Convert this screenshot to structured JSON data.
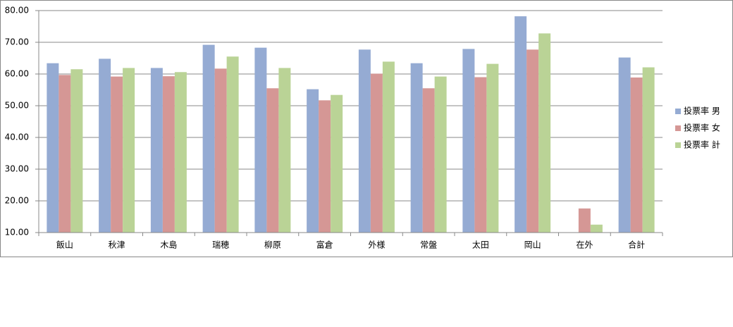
{
  "chart_data": {
    "type": "bar",
    "categories": [
      "飯山",
      "秋津",
      "木島",
      "瑞穂",
      "柳原",
      "富倉",
      "外様",
      "常盤",
      "太田",
      "岡山",
      "在外",
      "合計"
    ],
    "series": [
      {
        "name": "投票率 男",
        "color": "#95abd3",
        "values": [
          63.4,
          64.8,
          61.9,
          69.2,
          68.3,
          55.2,
          67.7,
          63.4,
          67.9,
          78.2,
          null,
          65.2
        ]
      },
      {
        "name": "投票率 女",
        "color": "#d59795",
        "values": [
          59.7,
          59.2,
          59.3,
          61.7,
          55.5,
          51.7,
          60.1,
          55.5,
          59.0,
          67.7,
          17.6,
          58.9
        ]
      },
      {
        "name": "投票率 計",
        "color": "#bad396",
        "values": [
          61.5,
          61.9,
          60.6,
          65.5,
          61.9,
          53.4,
          63.9,
          59.2,
          63.2,
          72.8,
          12.5,
          62.1
        ]
      }
    ],
    "ylim": [
      10,
      80
    ],
    "yticks": [
      {
        "value": 10,
        "label": "10.00"
      },
      {
        "value": 20,
        "label": "20.00"
      },
      {
        "value": 30,
        "label": "30.00"
      },
      {
        "value": 40,
        "label": "40.00"
      },
      {
        "value": 50,
        "label": "50.00"
      },
      {
        "value": 60,
        "label": "60.00"
      },
      {
        "value": 70,
        "label": "70.00"
      },
      {
        "value": 80,
        "label": "80.00"
      }
    ],
    "grid": true,
    "legend": "right"
  }
}
